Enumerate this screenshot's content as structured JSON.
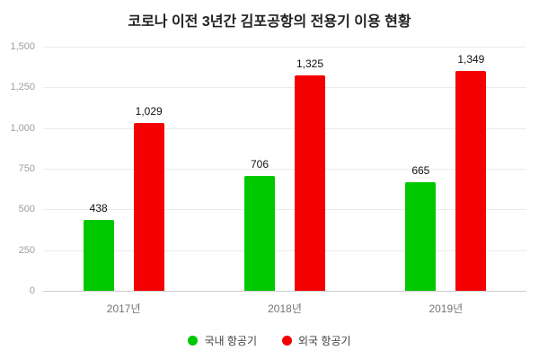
{
  "chart_data": {
    "type": "bar",
    "title": "코로나 이전 3년간 김포공항의 전용기 이용 현황",
    "categories": [
      "2017년",
      "2018년",
      "2019년"
    ],
    "series": [
      {
        "name": "국내 항공기",
        "color": "#00c800",
        "values": [
          438,
          706,
          665
        ]
      },
      {
        "name": "외국 항공기",
        "color": "#f40000",
        "values": [
          1029,
          1325,
          1349
        ]
      }
    ],
    "xlabel": "",
    "ylabel": "",
    "ylim": [
      0,
      1500
    ],
    "yticks": [
      0,
      250,
      500,
      750,
      1000,
      1250,
      1500
    ],
    "grid": true,
    "legend_position": "bottom",
    "value_labels_shown": true
  }
}
